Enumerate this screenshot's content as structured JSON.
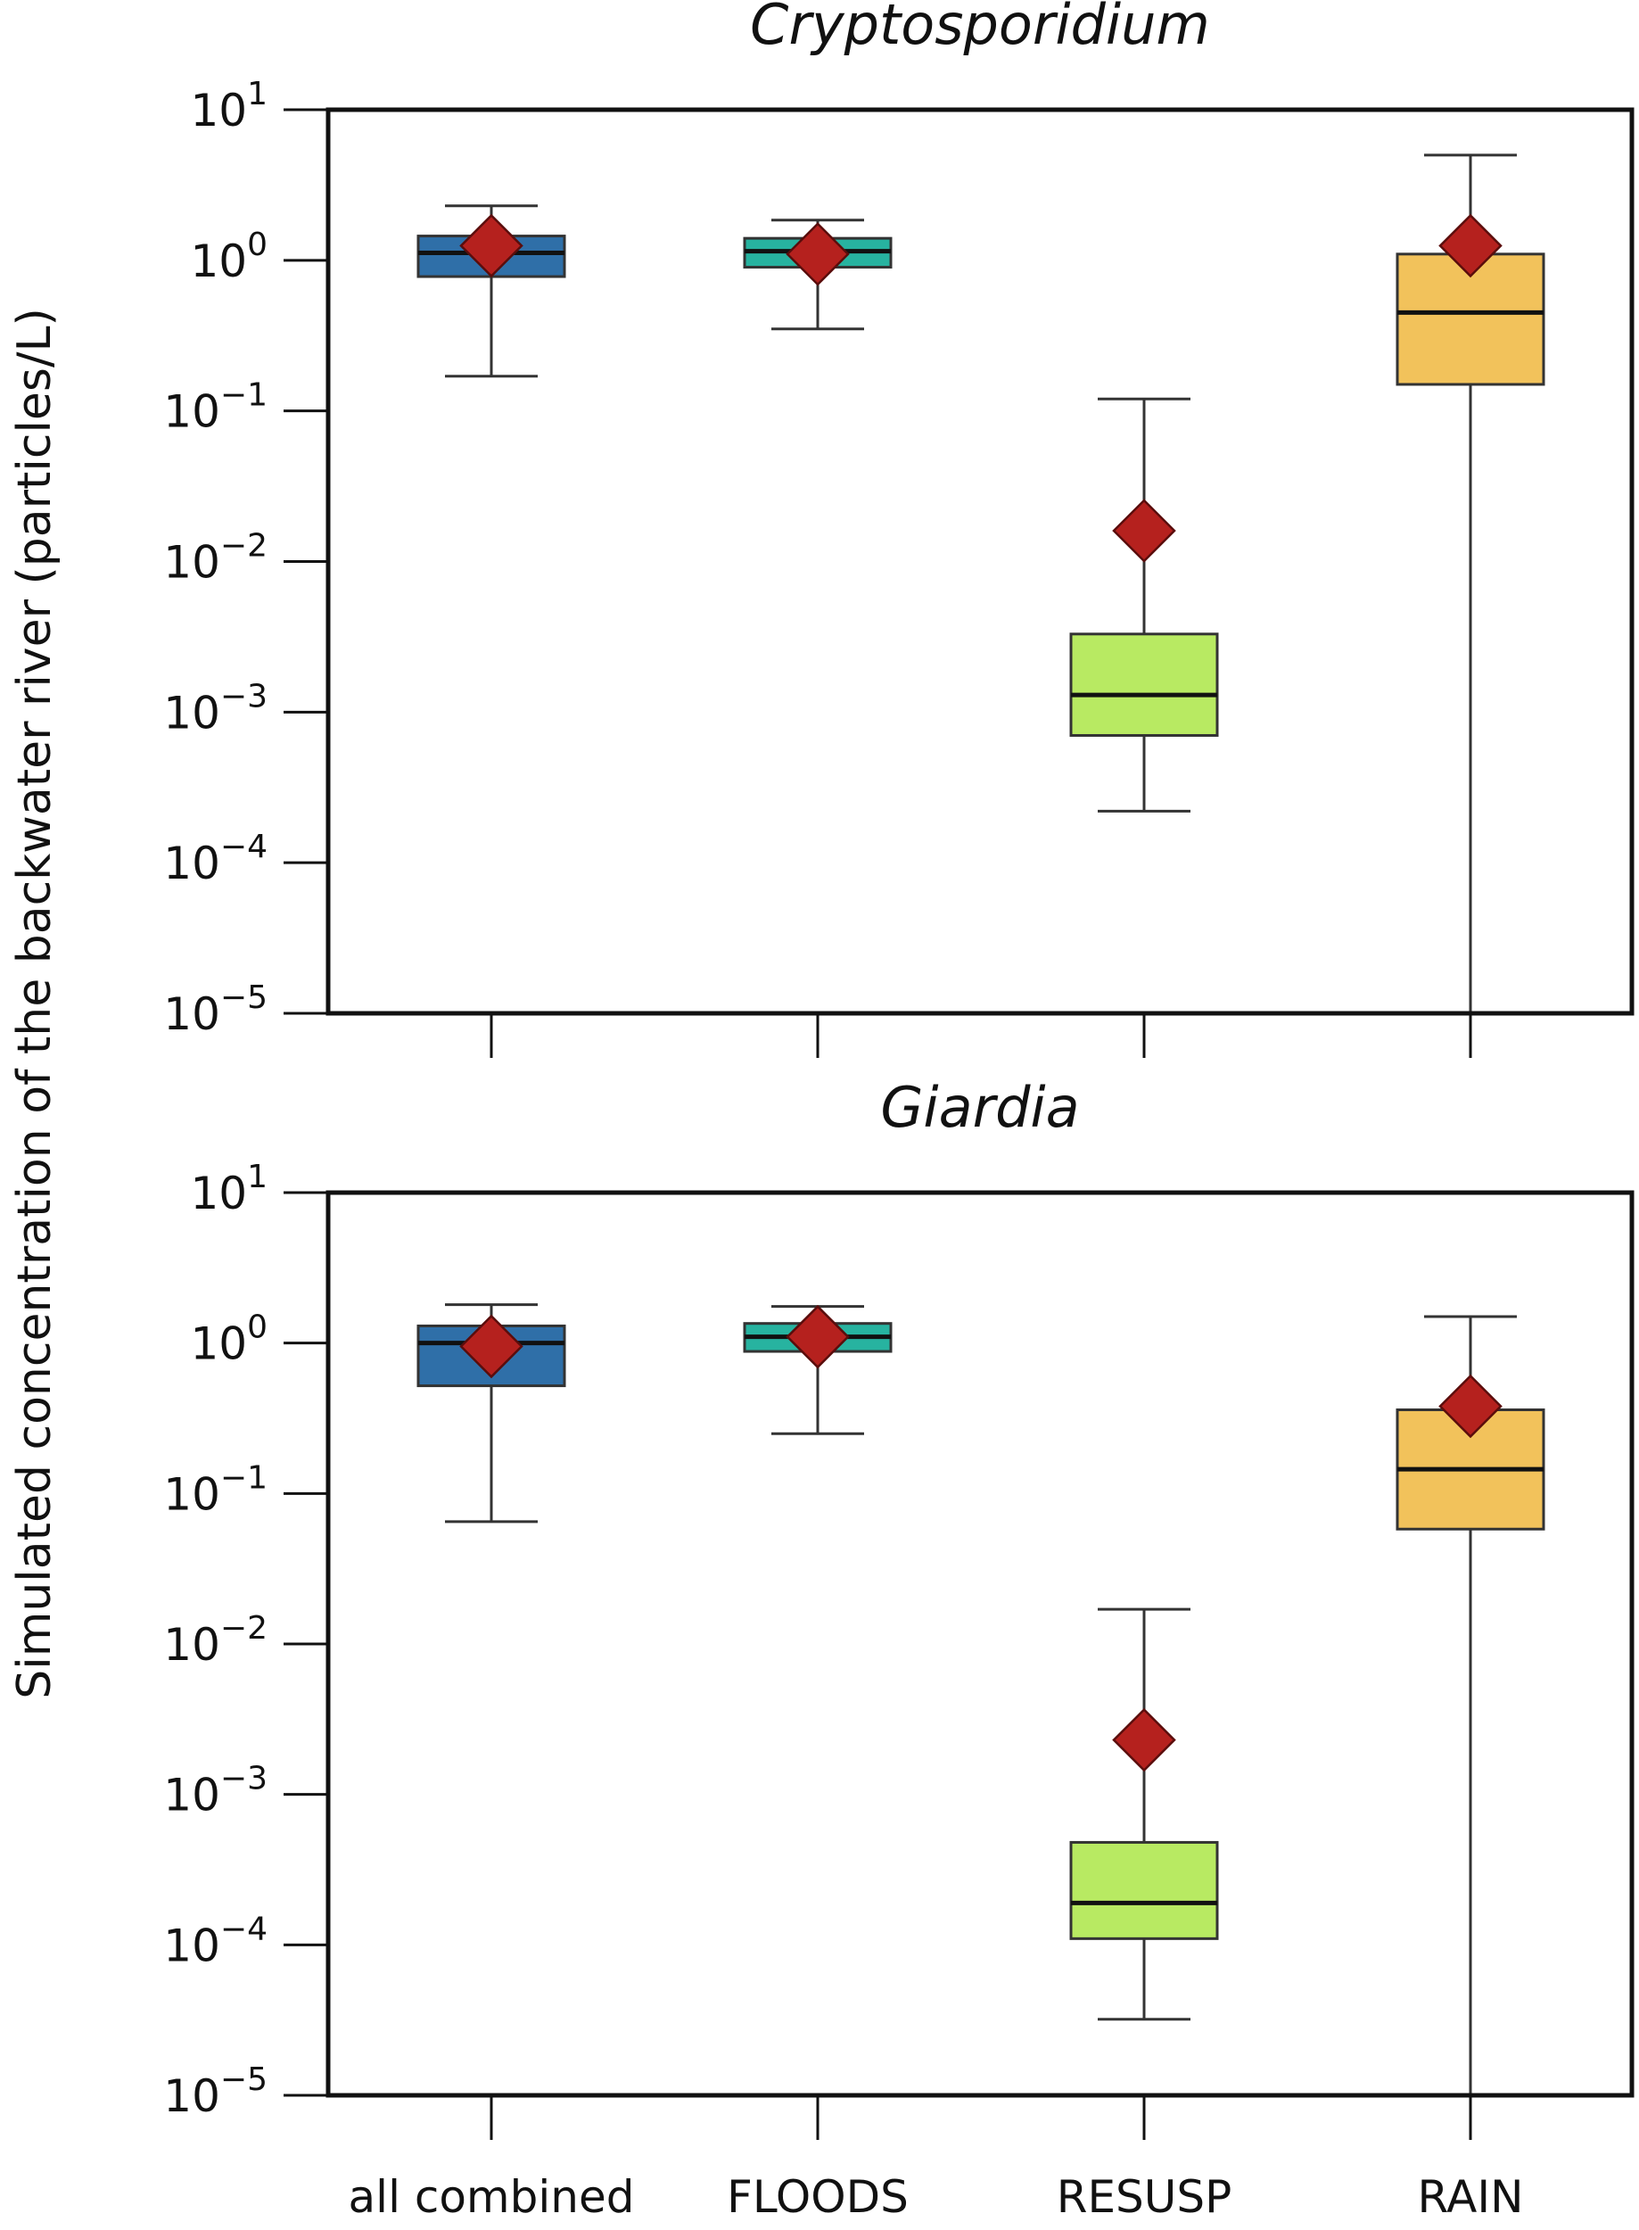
{
  "ylabel": "Simulated concentration of the backwater river (particles/L)",
  "categories": [
    "all combined",
    "FLOODS",
    "RESUSP",
    "RAIN"
  ],
  "colors": {
    "all combined": "#2f6fa8",
    "FLOODS": "#27b3a0",
    "RESUSP": "#b8ea62",
    "RAIN": "#f2c25b",
    "mean_marker": "#b5211e"
  },
  "ytick_labels": [
    {
      "base": "10",
      "exp": "1"
    },
    {
      "base": "10",
      "exp": "0"
    },
    {
      "base": "10",
      "exp": "−1"
    },
    {
      "base": "10",
      "exp": "−2"
    },
    {
      "base": "10",
      "exp": "−3"
    },
    {
      "base": "10",
      "exp": "−4"
    },
    {
      "base": "10",
      "exp": "−5"
    }
  ],
  "chart_data": [
    {
      "type": "box",
      "title": "Cryptosporidium",
      "y_scale": "log",
      "ylim": [
        1e-05,
        10
      ],
      "categories": [
        "all combined",
        "FLOODS",
        "RESUSP",
        "RAIN"
      ],
      "boxes": [
        {
          "category": "all combined",
          "whisker_low": 0.17,
          "q1": 0.78,
          "median": 1.12,
          "q3": 1.45,
          "whisker_high": 2.3,
          "mean": 1.25
        },
        {
          "category": "FLOODS",
          "whisker_low": 0.35,
          "q1": 0.9,
          "median": 1.15,
          "q3": 1.4,
          "whisker_high": 1.85,
          "mean": 1.1
        },
        {
          "category": "RESUSP",
          "whisker_low": 0.00022,
          "q1": 0.0007,
          "median": 0.0013,
          "q3": 0.0033,
          "whisker_high": 0.12,
          "mean": 0.016
        },
        {
          "category": "RAIN",
          "whisker_low": 1e-05,
          "q1": 0.15,
          "median": 0.45,
          "q3": 1.1,
          "whisker_high": 5.0,
          "mean": 1.25
        }
      ]
    },
    {
      "type": "box",
      "title": "Giardia",
      "y_scale": "log",
      "ylim": [
        1e-05,
        10
      ],
      "categories": [
        "all combined",
        "FLOODS",
        "RESUSP",
        "RAIN"
      ],
      "boxes": [
        {
          "category": "all combined",
          "whisker_low": 0.065,
          "q1": 0.52,
          "median": 1.0,
          "q3": 1.3,
          "whisker_high": 1.8,
          "mean": 0.95
        },
        {
          "category": "FLOODS",
          "whisker_low": 0.25,
          "q1": 0.88,
          "median": 1.1,
          "q3": 1.35,
          "whisker_high": 1.75,
          "mean": 1.1
        },
        {
          "category": "RESUSP",
          "whisker_low": 3.2e-05,
          "q1": 0.00011,
          "median": 0.00019,
          "q3": 0.00048,
          "whisker_high": 0.017,
          "mean": 0.0023
        },
        {
          "category": "RAIN",
          "whisker_low": 1e-05,
          "q1": 0.058,
          "median": 0.145,
          "q3": 0.36,
          "whisker_high": 1.5,
          "mean": 0.38
        }
      ]
    }
  ]
}
